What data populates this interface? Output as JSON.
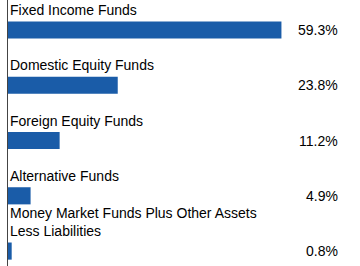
{
  "chart_data": {
    "type": "bar",
    "orientation": "horizontal",
    "categories": [
      "Fixed Income Funds",
      "Domestic Equity Funds",
      "Foreign Equity Funds",
      "Alternative Funds",
      "Money Market Funds Plus Other Assets Less Liabilities"
    ],
    "values": [
      59.3,
      23.8,
      11.2,
      4.9,
      0.8
    ],
    "value_labels": [
      "59.3%",
      "23.8%",
      "11.2%",
      "4.9%",
      "0.8%"
    ],
    "color": "#1a5ca8",
    "xlim": [
      0,
      72
    ],
    "grid": false,
    "data_labels": true,
    "tick_labels": false
  }
}
